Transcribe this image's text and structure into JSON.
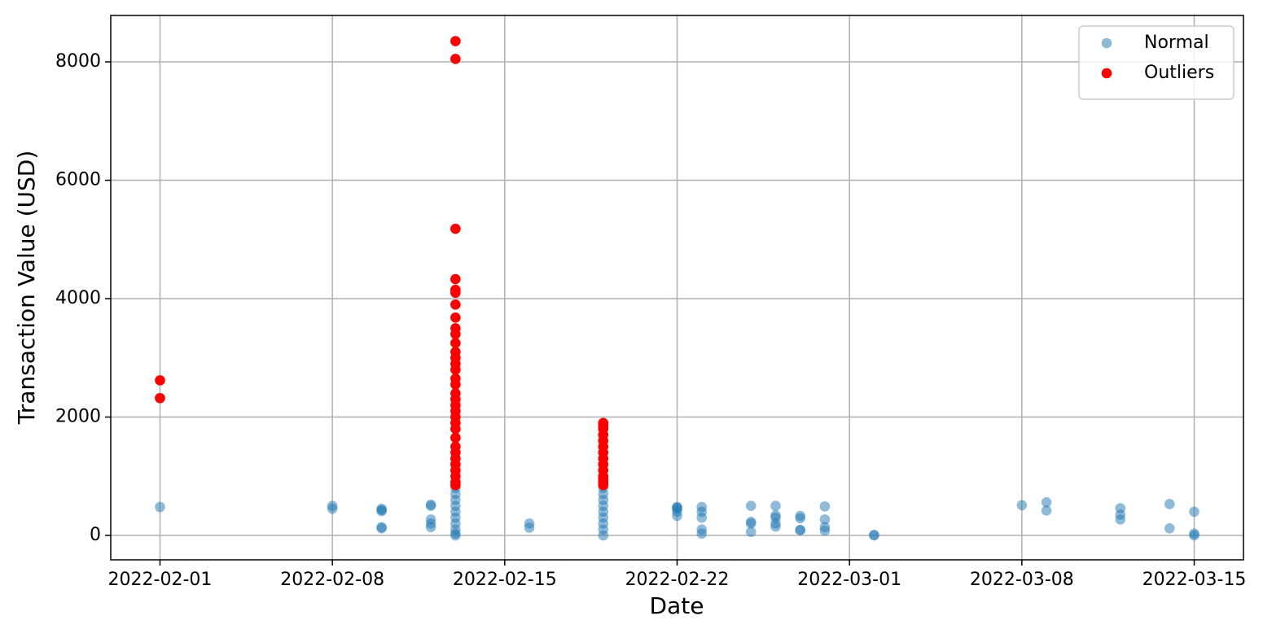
{
  "chart_data": {
    "type": "scatter",
    "xlabel": "Date",
    "ylabel": "Transaction Value (USD)",
    "xlim": [
      "2022-01-30",
      "2022-03-17"
    ],
    "xticks": [
      "2022-02-01",
      "2022-02-08",
      "2022-02-15",
      "2022-02-22",
      "2022-03-01",
      "2022-03-08",
      "2022-03-15"
    ],
    "ylim": [
      -412,
      8784
    ],
    "yticks": [
      0,
      2000,
      4000,
      6000,
      8000
    ],
    "grid": true,
    "legend": "upper right",
    "series": [
      {
        "name": "Normal",
        "color": "#1f77b4",
        "opacity": 0.5,
        "x": [
          "2022-02-01",
          "2022-02-08",
          "2022-02-08",
          "2022-02-10",
          "2022-02-10",
          "2022-02-10",
          "2022-02-10",
          "2022-02-10",
          "2022-02-12",
          "2022-02-12",
          "2022-02-12",
          "2022-02-12",
          "2022-02-12",
          "2022-02-13",
          "2022-02-13",
          "2022-02-13",
          "2022-02-13",
          "2022-02-13",
          "2022-02-13",
          "2022-02-13",
          "2022-02-13",
          "2022-02-13",
          "2022-02-13",
          "2022-02-16",
          "2022-02-16",
          "2022-02-19",
          "2022-02-19",
          "2022-02-19",
          "2022-02-19",
          "2022-02-19",
          "2022-02-19",
          "2022-02-19",
          "2022-02-19",
          "2022-02-19",
          "2022-02-22",
          "2022-02-22",
          "2022-02-22",
          "2022-02-22",
          "2022-02-22",
          "2022-02-23",
          "2022-02-23",
          "2022-02-23",
          "2022-02-23",
          "2022-02-23",
          "2022-02-25",
          "2022-02-25",
          "2022-02-25",
          "2022-02-25",
          "2022-02-26",
          "2022-02-26",
          "2022-02-26",
          "2022-02-26",
          "2022-02-26",
          "2022-02-27",
          "2022-02-27",
          "2022-02-27",
          "2022-02-27",
          "2022-02-28",
          "2022-02-28",
          "2022-02-28",
          "2022-02-28",
          "2022-03-02",
          "2022-03-02",
          "2022-03-08",
          "2022-03-09",
          "2022-03-09",
          "2022-03-12",
          "2022-03-12",
          "2022-03-12",
          "2022-03-14",
          "2022-03-14",
          "2022-03-15",
          "2022-03-15",
          "2022-03-15"
        ],
        "values": [
          480,
          500,
          450,
          450,
          430,
          140,
          410,
          120,
          520,
          500,
          270,
          200,
          140,
          800,
          700,
          600,
          500,
          400,
          300,
          200,
          100,
          30,
          0,
          200,
          130,
          800,
          700,
          600,
          500,
          400,
          300,
          200,
          100,
          0,
          470,
          330,
          480,
          400,
          450,
          480,
          400,
          300,
          100,
          30,
          500,
          230,
          200,
          60,
          340,
          500,
          300,
          200,
          150,
          330,
          90,
          290,
          90,
          490,
          270,
          140,
          80,
          10,
          0,
          510,
          560,
          420,
          460,
          350,
          270,
          530,
          120,
          400,
          30,
          0
        ]
      },
      {
        "name": "Outliers",
        "color": "#ff0000",
        "opacity": 1,
        "x": [
          "2022-02-01",
          "2022-02-01",
          "2022-02-13",
          "2022-02-13",
          "2022-02-13",
          "2022-02-13",
          "2022-02-13",
          "2022-02-13",
          "2022-02-13",
          "2022-02-13",
          "2022-02-13",
          "2022-02-13",
          "2022-02-13",
          "2022-02-13",
          "2022-02-13",
          "2022-02-13",
          "2022-02-13",
          "2022-02-13",
          "2022-02-13",
          "2022-02-13",
          "2022-02-13",
          "2022-02-13",
          "2022-02-13",
          "2022-02-13",
          "2022-02-13",
          "2022-02-13",
          "2022-02-13",
          "2022-02-13",
          "2022-02-13",
          "2022-02-13",
          "2022-02-13",
          "2022-02-13",
          "2022-02-13",
          "2022-02-13",
          "2022-02-13",
          "2022-02-19",
          "2022-02-19",
          "2022-02-19",
          "2022-02-19",
          "2022-02-19",
          "2022-02-19",
          "2022-02-19",
          "2022-02-19",
          "2022-02-19",
          "2022-02-19",
          "2022-02-19",
          "2022-02-19",
          "2022-02-19",
          "2022-02-19"
        ],
        "values": [
          2620,
          2320,
          8350,
          8050,
          5180,
          4330,
          4150,
          4100,
          3900,
          3680,
          3500,
          3400,
          3250,
          3100,
          3000,
          2900,
          2800,
          2650,
          2550,
          2400,
          2300,
          2200,
          2100,
          2000,
          1900,
          1800,
          1650,
          1500,
          1400,
          1300,
          1200,
          1100,
          1000,
          900,
          850,
          1900,
          1850,
          1800,
          1700,
          1600,
          1500,
          1400,
          1300,
          1200,
          1100,
          1000,
          950,
          900,
          850
        ]
      }
    ]
  }
}
